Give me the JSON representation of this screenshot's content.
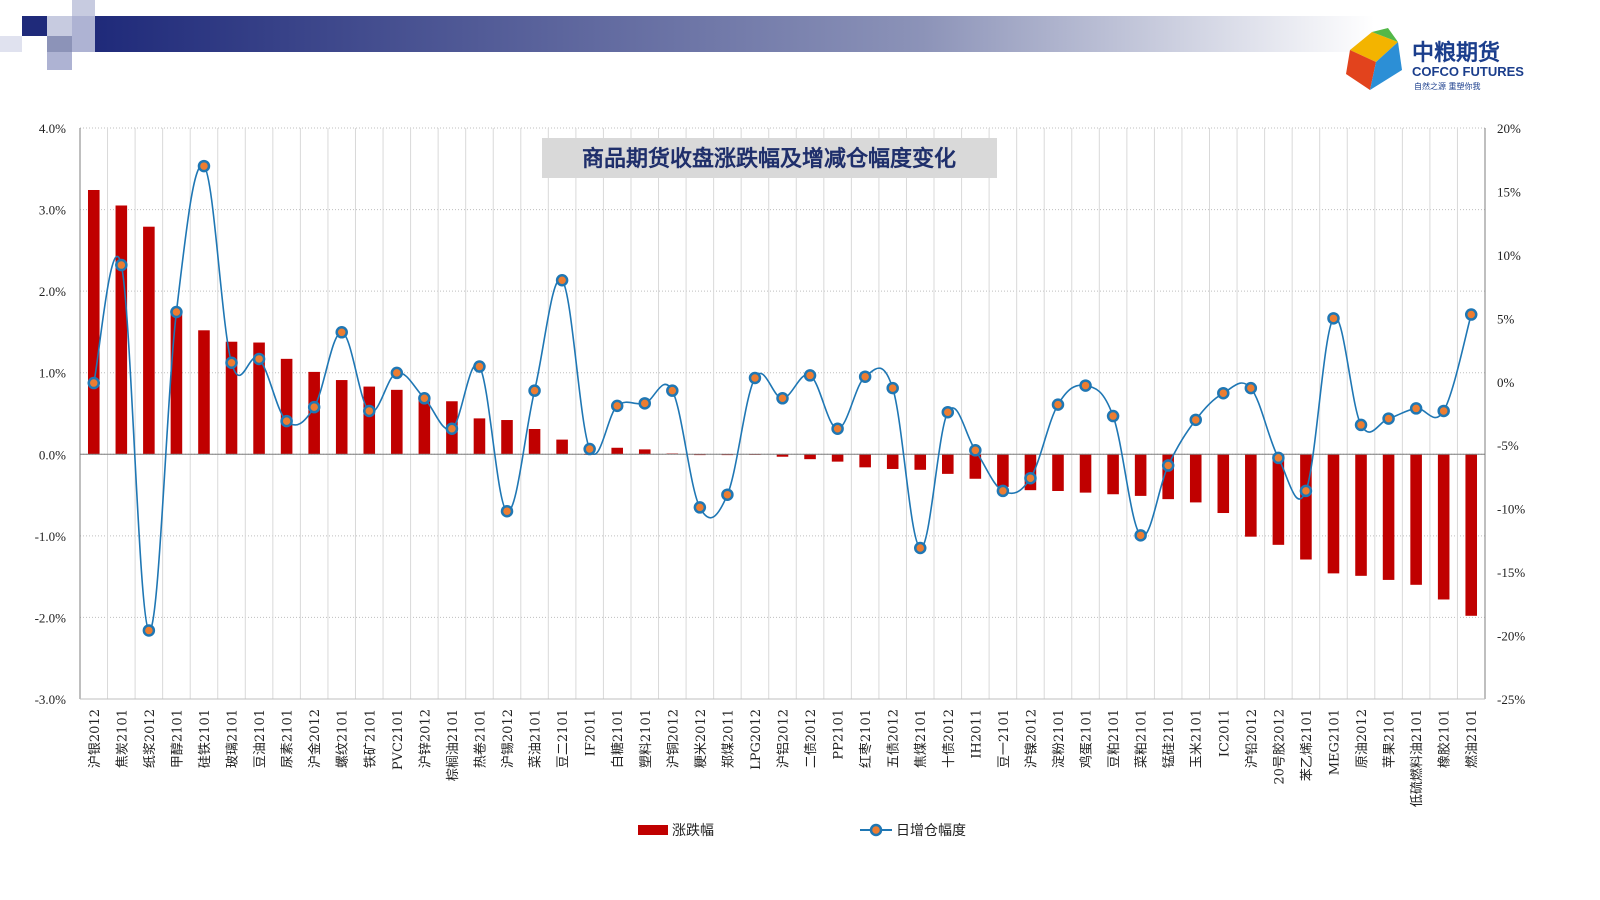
{
  "logo": {
    "name_cn": "中粮期货",
    "name_en": "COFCO FUTURES",
    "slogan": "自然之源 重塑你我"
  },
  "colors": {
    "bar": "#c00000",
    "line": "#1f77b4",
    "marker_fill": "#ed7d31",
    "title_bg": "#d9d9d9",
    "header_dark": "#1f2a7a"
  },
  "chart_data": {
    "type": "bar",
    "title": "商品期货收盘涨跌幅及增减仓幅度变化",
    "categories": [
      "沪银2012",
      "焦炭2101",
      "纸浆2012",
      "甲醇2101",
      "硅铁2101",
      "玻璃2101",
      "豆油2101",
      "尿素2101",
      "沪金2012",
      "螺纹2101",
      "铁矿2101",
      "PVC2101",
      "沪锌2012",
      "棕榈油2101",
      "热卷2101",
      "沪锡2012",
      "菜油2101",
      "豆二2101",
      "IF2011",
      "白糖2101",
      "塑料2101",
      "沪铜2012",
      "粳米2012",
      "郑煤2011",
      "LPG2012",
      "沪铝2012",
      "二债2012",
      "PP2101",
      "红枣2101",
      "五债2012",
      "焦煤2101",
      "十债2012",
      "IH2011",
      "豆一2101",
      "沪镍2012",
      "淀粉2101",
      "鸡蛋2101",
      "豆粕2101",
      "菜粕2101",
      "锰硅2101",
      "玉米2101",
      "IC2011",
      "沪铅2012",
      "20号胶2012",
      "苯乙烯2101",
      "MEG2101",
      "原油2012",
      "苹果2101",
      "低硫燃料油2101",
      "橡胶2101",
      "燃油2101"
    ],
    "series": [
      {
        "name": "涨跌幅",
        "type": "bar",
        "axis": "left",
        "values": [
          3.24,
          3.05,
          2.79,
          1.77,
          1.52,
          1.38,
          1.37,
          1.17,
          1.01,
          0.91,
          0.83,
          0.79,
          0.67,
          0.65,
          0.44,
          0.42,
          0.31,
          0.18,
          0.0,
          0.08,
          0.06,
          0.01,
          -0.01,
          -0.01,
          0.0,
          -0.03,
          -0.06,
          -0.09,
          -0.16,
          -0.18,
          -0.19,
          -0.24,
          -0.3,
          -0.4,
          -0.44,
          -0.45,
          -0.47,
          -0.49,
          -0.51,
          -0.55,
          -0.59,
          -0.72,
          -1.01,
          -1.11,
          -1.29,
          -1.46,
          -1.49,
          -1.54,
          -1.6,
          -1.78,
          -1.98
        ]
      },
      {
        "name": "日增仓幅度",
        "type": "line",
        "axis": "right",
        "values": [
          -0.1,
          9.2,
          -19.6,
          5.5,
          17.0,
          1.5,
          1.8,
          -3.1,
          -2.0,
          3.9,
          -2.3,
          0.7,
          -1.3,
          -3.7,
          1.2,
          -10.2,
          -0.7,
          8.0,
          -5.3,
          -1.9,
          -1.7,
          -0.7,
          -9.9,
          -8.9,
          0.3,
          -1.3,
          0.5,
          -3.7,
          0.4,
          -0.5,
          -13.1,
          -2.4,
          -5.4,
          -8.6,
          -7.6,
          -1.8,
          -0.3,
          -2.7,
          -12.1,
          -6.6,
          -3.0,
          -0.9,
          -0.5,
          -6.0,
          -8.6,
          5.0,
          -3.4,
          -2.9,
          -2.1,
          -2.3,
          5.3
        ]
      }
    ],
    "left_axis": {
      "min": -3.0,
      "max": 4.0,
      "step": 1.0,
      "tick_labels": [
        "-3.0%",
        "-2.0%",
        "-1.0%",
        "0.0%",
        "1.0%",
        "2.0%",
        "3.0%",
        "4.0%"
      ]
    },
    "right_axis": {
      "min": -25,
      "max": 20,
      "step": 5,
      "tick_labels": [
        "-25%",
        "-20%",
        "-15%",
        "-10%",
        "-5%",
        "0%",
        "5%",
        "10%",
        "15%",
        "20%"
      ]
    },
    "grid": true,
    "legend": "bottom-center",
    "legend_labels": [
      "涨跌幅",
      "日增仓幅度"
    ]
  }
}
